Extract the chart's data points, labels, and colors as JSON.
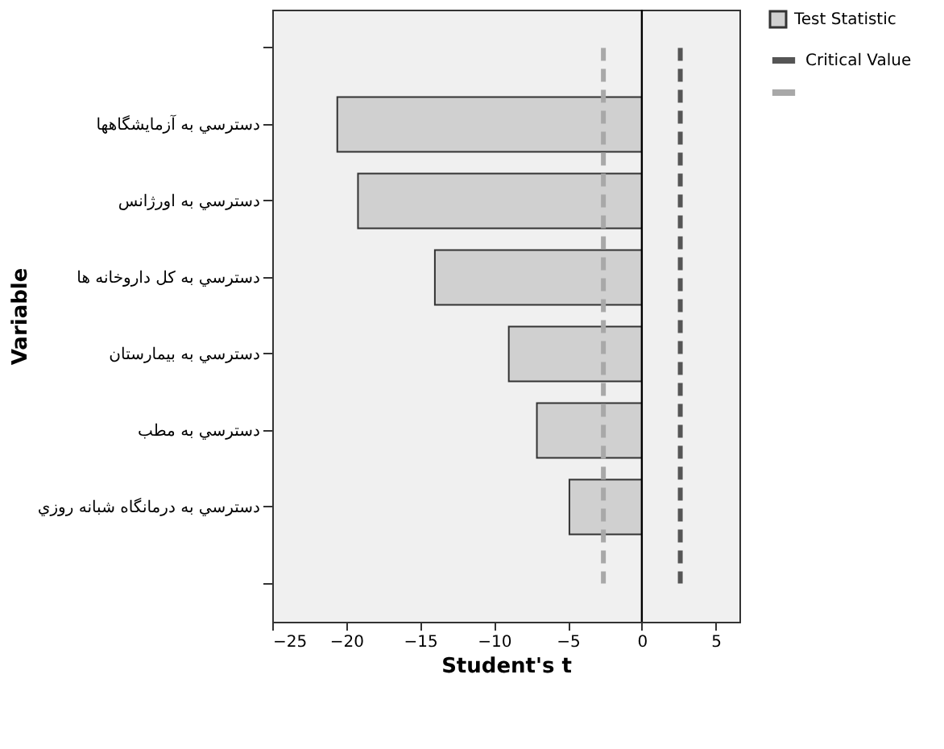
{
  "chart_data": {
    "type": "bar",
    "orientation": "horizontal",
    "xlabel": "Student's t",
    "ylabel": "Variable",
    "categories": [
      null,
      "دسترسي به آزمایشگاهها",
      "دسترسي به اورژانس",
      "دسترسي به کل داروخانه ها",
      "دسترسي به بیمارستان",
      "دسترسي به مطب",
      "دسترسي به درمانگاه شبانه روزي",
      null
    ],
    "series": [
      {
        "name": "Test Statistic",
        "color": "#d0d0d0",
        "values": [
          null,
          -20.6,
          -19.2,
          -14.0,
          -9.0,
          -7.1,
          -4.9,
          null
        ]
      },
      {
        "name": "Critical Value",
        "type": "line",
        "line_style": "dashed",
        "color": "#555555",
        "values": [
          2.6,
          2.6,
          2.6,
          2.6,
          2.6,
          2.6,
          2.6,
          2.6
        ]
      },
      {
        "type": "line",
        "line_style": "dashed",
        "color": "#a8a8a8",
        "values": [
          -2.6,
          -2.6,
          -2.6,
          -2.6,
          -2.6,
          -2.6,
          -2.6,
          -2.6
        ]
      }
    ],
    "xlim": [
      -25,
      6.6
    ],
    "xticks": [
      -25,
      -20,
      -15,
      -10,
      -5,
      0,
      5
    ],
    "ref_lines": [
      {
        "axis": "x",
        "value": 0,
        "color": "#000000",
        "line_style": "solid"
      }
    ],
    "grid": false,
    "legend": "top right",
    "marker": "none"
  }
}
